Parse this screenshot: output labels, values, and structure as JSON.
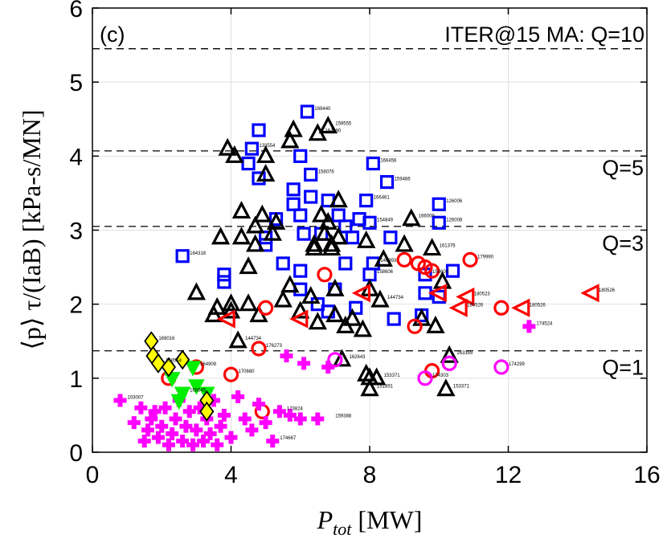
{
  "chart_data": {
    "type": "scatter",
    "panel_label": "(c)",
    "annotation": "ITER@15 MA: Q=10",
    "xlabel_main": "P",
    "xlabel_sub": "tot",
    "xlabel_unit": " [MW]",
    "ylabel": "⟨p⟩ τ/(IaB) [kPa-s/MN]",
    "xlim": [
      0,
      16
    ],
    "ylim": [
      0,
      6
    ],
    "xticks": [
      0,
      4,
      8,
      12,
      16
    ],
    "yticks": [
      0,
      1,
      2,
      3,
      4,
      5,
      6
    ],
    "grid": true,
    "reference_lines": [
      {
        "y": 5.45,
        "label": ""
      },
      {
        "y": 4.07,
        "label": "Q=5"
      },
      {
        "y": 3.05,
        "label": "Q=3"
      },
      {
        "y": 1.37,
        "label": "Q=1"
      }
    ],
    "series": [
      {
        "marker": "square",
        "color": "#0000ff",
        "points": [
          [
            2.6,
            2.65
          ],
          [
            3.8,
            2.4
          ],
          [
            3.8,
            2.3
          ],
          [
            4.5,
            3.9
          ],
          [
            4.6,
            4.1
          ],
          [
            4.8,
            4.35
          ],
          [
            4.8,
            3.7
          ],
          [
            5.0,
            2.9
          ],
          [
            5.0,
            2.8
          ],
          [
            5.3,
            3.15
          ],
          [
            5.5,
            2.55
          ],
          [
            5.8,
            3.35
          ],
          [
            5.8,
            3.55
          ],
          [
            6.0,
            4.0
          ],
          [
            6.0,
            3.2
          ],
          [
            6.0,
            2.45
          ],
          [
            6.0,
            2.2
          ],
          [
            6.1,
            2.95
          ],
          [
            6.2,
            4.6
          ],
          [
            6.3,
            3.75
          ],
          [
            6.3,
            3.45
          ],
          [
            6.5,
            2.0
          ],
          [
            6.6,
            2.95
          ],
          [
            6.8,
            3.4
          ],
          [
            6.8,
            1.9
          ],
          [
            7.0,
            2.2
          ],
          [
            7.1,
            3.2
          ],
          [
            7.3,
            3.05
          ],
          [
            7.3,
            2.55
          ],
          [
            7.5,
            2.9
          ],
          [
            7.6,
            1.95
          ],
          [
            7.7,
            3.15
          ],
          [
            7.9,
            3.4
          ],
          [
            8.0,
            3.1
          ],
          [
            8.0,
            2.4
          ],
          [
            8.1,
            3.9
          ],
          [
            8.1,
            2.55
          ],
          [
            8.5,
            3.65
          ],
          [
            8.6,
            2.9
          ],
          [
            8.7,
            1.8
          ],
          [
            9.5,
            1.85
          ],
          [
            9.6,
            2.15
          ],
          [
            9.6,
            2.4
          ],
          [
            10.0,
            3.35
          ],
          [
            10.0,
            3.1
          ],
          [
            10.0,
            2.1
          ],
          [
            10.4,
            2.45
          ]
        ],
        "labels": [
          [
            6.2,
            4.6,
            "169440"
          ],
          [
            4.6,
            4.1,
            "133554"
          ],
          [
            8.1,
            3.9,
            "166456"
          ],
          [
            8.5,
            3.65,
            "159466"
          ],
          [
            6.3,
            3.75,
            "158076"
          ],
          [
            7.9,
            3.4,
            "166461"
          ],
          [
            10.0,
            3.35,
            "126006"
          ],
          [
            10.0,
            3.1,
            "126008"
          ],
          [
            8.0,
            3.1,
            "154849"
          ],
          [
            2.6,
            2.65,
            "164318"
          ],
          [
            8.1,
            2.55,
            "146393"
          ],
          [
            9.6,
            2.4,
            "158606"
          ],
          [
            8.0,
            2.4,
            "158606"
          ]
        ]
      },
      {
        "marker": "triangle-up",
        "color": "#000000",
        "points": [
          [
            3.0,
            2.15
          ],
          [
            3.5,
            1.85
          ],
          [
            3.6,
            1.95
          ],
          [
            3.7,
            2.9
          ],
          [
            3.9,
            4.1
          ],
          [
            4.0,
            2.0
          ],
          [
            4.0,
            1.9
          ],
          [
            4.1,
            4.0
          ],
          [
            4.2,
            1.5
          ],
          [
            4.3,
            2.9
          ],
          [
            4.3,
            3.25
          ],
          [
            4.5,
            2.5
          ],
          [
            4.5,
            2.0
          ],
          [
            4.7,
            3.05
          ],
          [
            4.7,
            2.8
          ],
          [
            4.8,
            1.85
          ],
          [
            4.9,
            3.2
          ],
          [
            5.0,
            3.75
          ],
          [
            5.0,
            4.0
          ],
          [
            5.2,
            2.95
          ],
          [
            5.3,
            3.1
          ],
          [
            5.5,
            2.05
          ],
          [
            5.7,
            2.25
          ],
          [
            5.7,
            4.2
          ],
          [
            5.8,
            4.35
          ],
          [
            6.0,
            1.9
          ],
          [
            6.3,
            2.1
          ],
          [
            6.4,
            2.8
          ],
          [
            6.4,
            2.75
          ],
          [
            6.5,
            1.75
          ],
          [
            6.5,
            4.3
          ],
          [
            6.6,
            3.2
          ],
          [
            6.7,
            2.95
          ],
          [
            6.8,
            4.4
          ],
          [
            6.8,
            3.1
          ],
          [
            6.9,
            2.8
          ],
          [
            6.9,
            2.75
          ],
          [
            7.0,
            2.2
          ],
          [
            7.0,
            1.85
          ],
          [
            7.1,
            3.4
          ],
          [
            7.1,
            2.9
          ],
          [
            7.2,
            1.25
          ],
          [
            7.3,
            1.7
          ],
          [
            7.5,
            1.8
          ],
          [
            7.8,
            1.65
          ],
          [
            7.9,
            2.85
          ],
          [
            7.9,
            1.05
          ],
          [
            8.0,
            1.0
          ],
          [
            8.0,
            0.85
          ],
          [
            8.0,
            2.2
          ],
          [
            8.2,
            1.0
          ],
          [
            8.3,
            2.05
          ],
          [
            8.4,
            2.6
          ],
          [
            9.0,
            2.8
          ],
          [
            9.2,
            3.15
          ],
          [
            9.5,
            1.8
          ],
          [
            9.8,
            2.75
          ],
          [
            9.9,
            1.7
          ],
          [
            10.1,
            2.3
          ],
          [
            10.2,
            0.85
          ],
          [
            10.3,
            1.3
          ]
        ],
        "labels": [
          [
            6.8,
            4.4,
            "159555"
          ],
          [
            6.5,
            4.3,
            "164880"
          ],
          [
            9.2,
            3.15,
            "166009"
          ],
          [
            9.8,
            2.75,
            "161376"
          ],
          [
            10.3,
            1.3,
            "163355"
          ],
          [
            10.2,
            0.85,
            "153371"
          ],
          [
            8.2,
            1.0,
            "153371"
          ],
          [
            8.0,
            0.85,
            "151891"
          ],
          [
            8.3,
            2.05,
            "144734"
          ],
          [
            4.2,
            1.5,
            "144734"
          ],
          [
            7.2,
            1.25,
            "162643"
          ]
        ]
      },
      {
        "marker": "circle",
        "color": "#ff0000",
        "points": [
          [
            2.2,
            1.0
          ],
          [
            3.0,
            1.15
          ],
          [
            4.0,
            1.05
          ],
          [
            4.8,
            1.4
          ],
          [
            4.9,
            0.55
          ],
          [
            6.7,
            2.4
          ],
          [
            9.0,
            2.6
          ],
          [
            9.3,
            1.7
          ],
          [
            9.4,
            2.55
          ],
          [
            9.6,
            2.5
          ],
          [
            9.8,
            2.45
          ],
          [
            10.9,
            2.6
          ],
          [
            11.8,
            1.95
          ],
          [
            9.8,
            1.1
          ],
          [
            5.0,
            1.95
          ]
        ],
        "labels": [
          [
            10.9,
            2.6,
            "179990"
          ],
          [
            4.0,
            1.05,
            "170660"
          ],
          [
            4.8,
            1.4,
            "176273"
          ]
        ]
      },
      {
        "marker": "triangle-left",
        "color": "#ff0000",
        "points": [
          [
            3.9,
            1.8
          ],
          [
            6.0,
            1.8
          ],
          [
            7.8,
            2.15
          ],
          [
            10.0,
            2.15
          ],
          [
            10.6,
            1.95
          ],
          [
            10.8,
            2.1
          ],
          [
            12.4,
            1.95
          ],
          [
            14.4,
            2.15
          ]
        ],
        "labels": [
          [
            14.4,
            2.15,
            "180526"
          ],
          [
            12.4,
            1.95,
            "180526"
          ],
          [
            10.8,
            2.1,
            "180523"
          ],
          [
            10.6,
            1.95,
            "180526"
          ]
        ]
      },
      {
        "marker": "circle",
        "color": "#ff00ff",
        "points": [
          [
            7.0,
            1.25
          ],
          [
            9.6,
            1.0
          ],
          [
            10.3,
            1.2
          ],
          [
            11.8,
            1.15
          ]
        ],
        "labels": [
          [
            11.8,
            1.15,
            "174299"
          ],
          [
            9.6,
            1.0,
            "174303"
          ]
        ]
      },
      {
        "marker": "plus",
        "color": "#ff00ff",
        "points": [
          [
            0.8,
            0.7
          ],
          [
            1.2,
            0.4
          ],
          [
            1.4,
            0.6
          ],
          [
            1.5,
            0.15
          ],
          [
            1.6,
            0.3
          ],
          [
            1.7,
            0.45
          ],
          [
            1.8,
            0.55
          ],
          [
            1.9,
            0.2
          ],
          [
            2.0,
            0.35
          ],
          [
            2.1,
            0.6
          ],
          [
            2.2,
            0.1
          ],
          [
            2.3,
            0.25
          ],
          [
            2.4,
            0.45
          ],
          [
            2.5,
            0.7
          ],
          [
            2.6,
            0.15
          ],
          [
            2.7,
            0.35
          ],
          [
            2.8,
            0.55
          ],
          [
            2.9,
            0.1
          ],
          [
            3.0,
            0.3
          ],
          [
            3.1,
            0.6
          ],
          [
            3.2,
            0.15
          ],
          [
            3.3,
            0.45
          ],
          [
            3.4,
            0.25
          ],
          [
            3.5,
            0.7
          ],
          [
            3.6,
            0.1
          ],
          [
            3.7,
            0.35
          ],
          [
            3.8,
            0.5
          ],
          [
            4.0,
            0.2
          ],
          [
            4.2,
            0.75
          ],
          [
            4.4,
            0.45
          ],
          [
            4.6,
            0.3
          ],
          [
            4.8,
            0.65
          ],
          [
            5.0,
            0.4
          ],
          [
            5.2,
            0.15
          ],
          [
            5.4,
            0.55
          ],
          [
            5.7,
            0.5
          ],
          [
            6.0,
            0.45
          ],
          [
            6.5,
            0.45
          ],
          [
            5.6,
            1.3
          ],
          [
            6.1,
            1.2
          ],
          [
            6.8,
            1.15
          ],
          [
            12.6,
            1.7
          ]
        ],
        "labels": [
          [
            0.8,
            0.7,
            "103007"
          ],
          [
            12.6,
            1.7,
            "174524"
          ],
          [
            6.8,
            0.45,
            "159388"
          ],
          [
            5.4,
            0.55,
            "173824"
          ],
          [
            5.2,
            0.15,
            "174667"
          ]
        ]
      },
      {
        "marker": "triangle-down",
        "color": "#00ee00",
        "points": [
          [
            2.3,
            1.0
          ],
          [
            2.6,
            0.8
          ],
          [
            2.9,
            1.15
          ],
          [
            3.0,
            0.9
          ],
          [
            3.3,
            0.8
          ],
          [
            2.5,
            0.7
          ]
        ],
        "labels": [
          [
            2.9,
            1.15,
            "164908"
          ],
          [
            2.6,
            0.8,
            "165645"
          ]
        ]
      },
      {
        "marker": "diamond",
        "color": "#ffff00",
        "points": [
          [
            1.7,
            1.5
          ],
          [
            1.75,
            1.3
          ],
          [
            1.9,
            1.2
          ],
          [
            2.2,
            1.15
          ],
          [
            2.6,
            1.25
          ],
          [
            3.3,
            0.7
          ],
          [
            3.3,
            0.55
          ]
        ],
        "labels": [
          [
            1.7,
            1.5,
            "169016"
          ],
          [
            1.9,
            1.2,
            "168554"
          ]
        ]
      }
    ]
  }
}
